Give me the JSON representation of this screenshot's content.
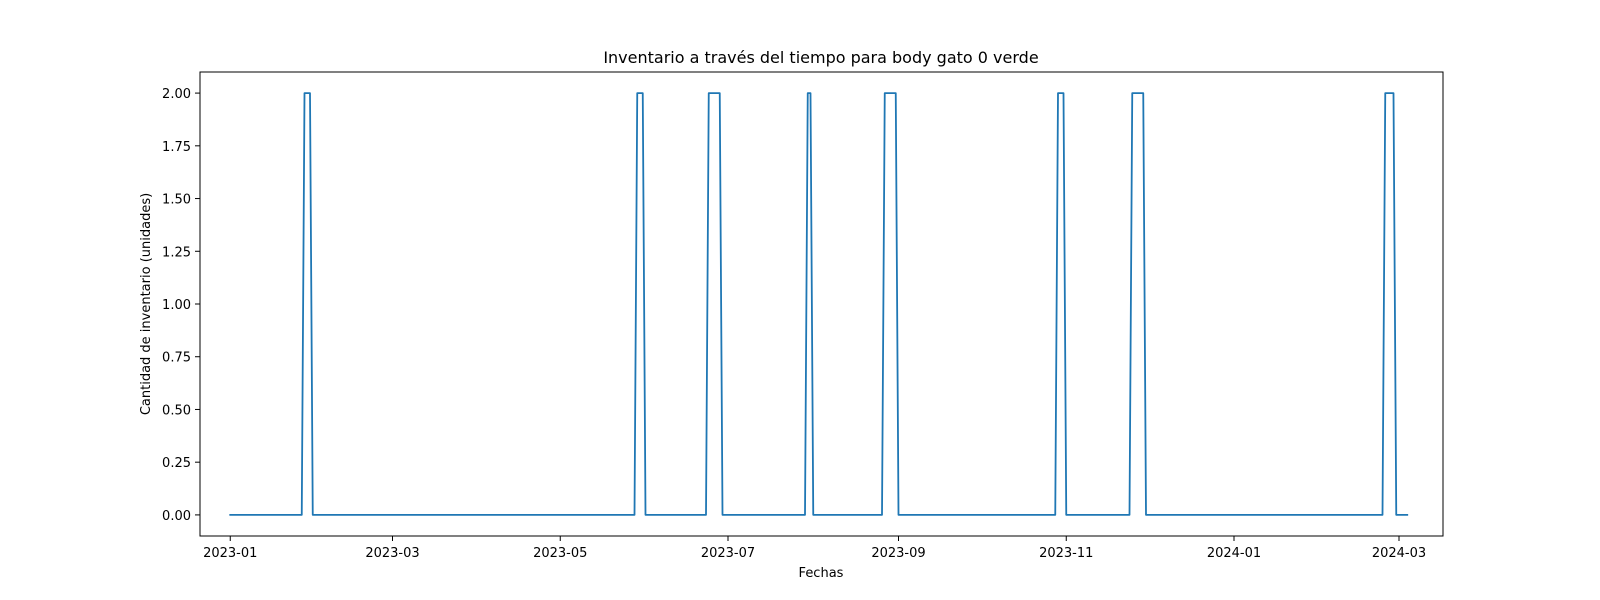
{
  "chart_data": {
    "type": "line",
    "title": "Inventario a través del tiempo para body gato 0 verde",
    "xlabel": "Fechas",
    "ylabel": "Cantidad de inventario (unidades)",
    "xlim": [
      "2022-12-21",
      "2024-03-17"
    ],
    "ylim": [
      -0.1,
      2.1
    ],
    "x_ticks": [
      "2023-01",
      "2023-03",
      "2023-05",
      "2023-07",
      "2023-09",
      "2023-11",
      "2024-01",
      "2024-03"
    ],
    "y_ticks": [
      "0.00",
      "0.25",
      "0.50",
      "0.75",
      "1.00",
      "1.25",
      "1.50",
      "1.75",
      "2.00"
    ],
    "grid": false,
    "legend": "none",
    "color": "#1f77b4",
    "series": [
      {
        "x": [
          "2023-01-01",
          "2023-01-27",
          "2023-01-28",
          "2023-01-30",
          "2023-01-31",
          "2023-05-28",
          "2023-05-29",
          "2023-05-31",
          "2023-06-01",
          "2023-06-23",
          "2023-06-24",
          "2023-06-28",
          "2023-06-29",
          "2023-07-29",
          "2023-07-30",
          "2023-07-31",
          "2023-08-01",
          "2023-08-26",
          "2023-08-27",
          "2023-08-31",
          "2023-09-01",
          "2023-10-28",
          "2023-10-29",
          "2023-10-31",
          "2023-11-01",
          "2023-11-24",
          "2023-11-25",
          "2023-11-29",
          "2023-11-30",
          "2024-02-24",
          "2024-02-25",
          "2024-02-28",
          "2024-02-29",
          "2024-03-04"
        ],
        "y": [
          0,
          0,
          2,
          2,
          0,
          0,
          2,
          2,
          0,
          0,
          2,
          2,
          0,
          0,
          2,
          2,
          0,
          0,
          2,
          2,
          0,
          0,
          2,
          2,
          0,
          0,
          2,
          2,
          0,
          0,
          2,
          2,
          0,
          0
        ]
      }
    ]
  }
}
